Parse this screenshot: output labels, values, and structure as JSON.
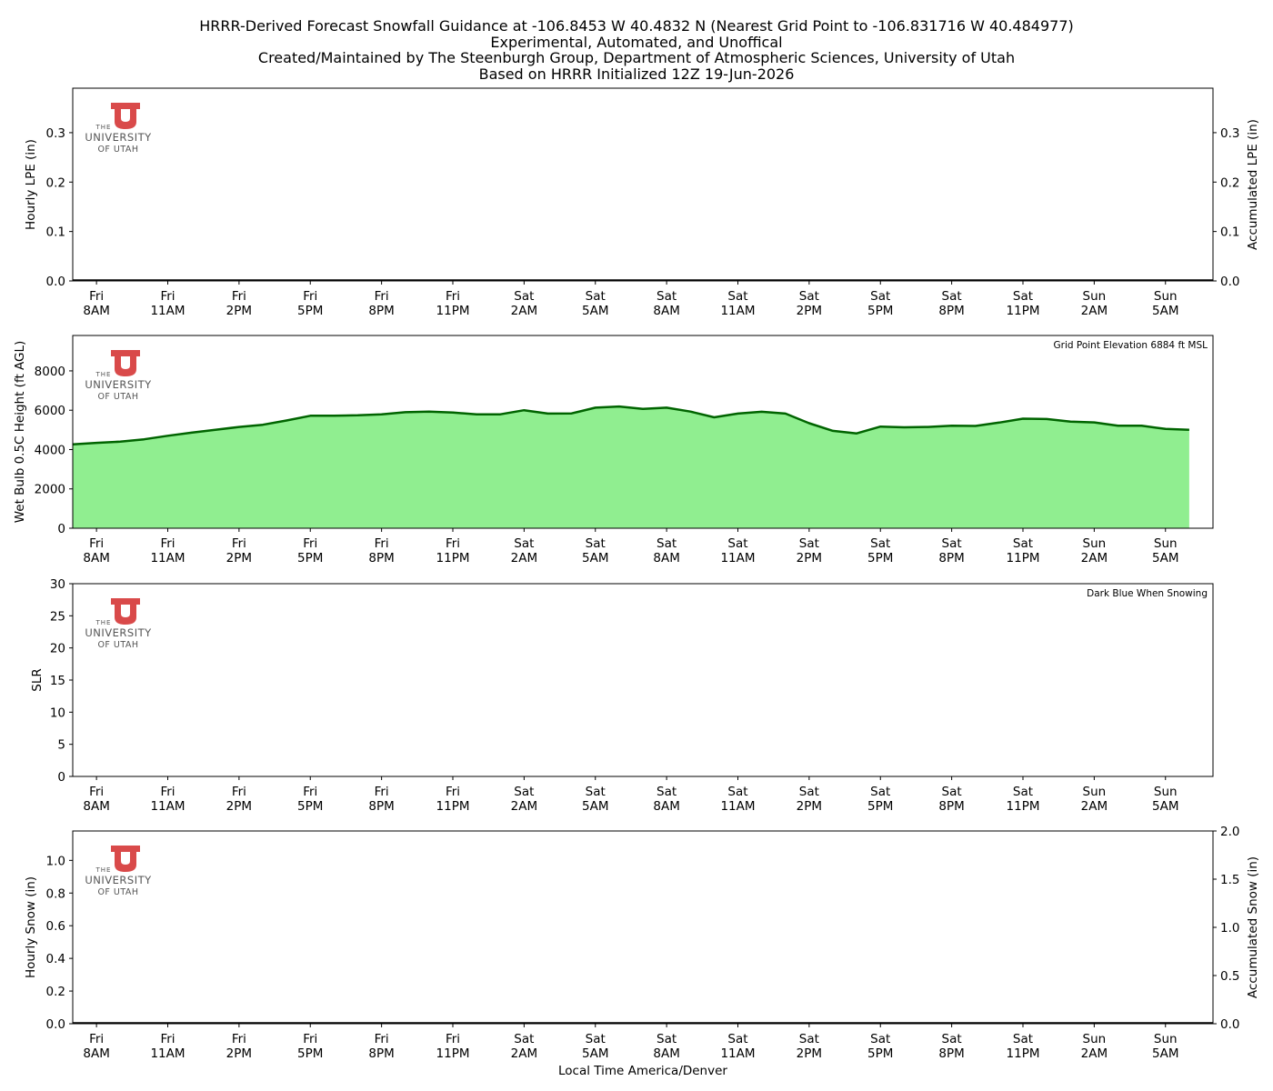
{
  "header": {
    "line1": "HRRR-Derived Forecast Snowfall Guidance at -106.8453 W 40.4832 N (Nearest Grid Point to -106.831716 W 40.484977)",
    "line2": "Experimental, Automated, and Unoffical",
    "line3": "Created/Maintained by The Steenburgh Group, Department of Atmospheric Sciences, University of Utah",
    "line4": "Based on HRRR Initialized 12Z 19-Jun-2026"
  },
  "logo": {
    "line1": "THE",
    "line2": "UNIVERSITY",
    "line3": "OF UTAH",
    "color": "#d94a4a"
  },
  "time_axis": {
    "xlabel": "Local Time America/Denver",
    "ticks": [
      [
        "Fri",
        "8AM"
      ],
      [
        "Fri",
        "11AM"
      ],
      [
        "Fri",
        "2PM"
      ],
      [
        "Fri",
        "5PM"
      ],
      [
        "Fri",
        "8PM"
      ],
      [
        "Fri",
        "11PM"
      ],
      [
        "Sat",
        "2AM"
      ],
      [
        "Sat",
        "5AM"
      ],
      [
        "Sat",
        "8AM"
      ],
      [
        "Sat",
        "11AM"
      ],
      [
        "Sat",
        "2PM"
      ],
      [
        "Sat",
        "5PM"
      ],
      [
        "Sat",
        "8PM"
      ],
      [
        "Sat",
        "11PM"
      ],
      [
        "Sun",
        "2AM"
      ],
      [
        "Sun",
        "5AM"
      ]
    ],
    "tick_hours": [
      1,
      4,
      7,
      10,
      13,
      16,
      19,
      22,
      25,
      28,
      31,
      34,
      37,
      40,
      43,
      46
    ],
    "xlim": [
      0,
      48
    ]
  },
  "chart_data": [
    {
      "type": "bar",
      "panel": "lpe",
      "ylabel": "Hourly LPE (in)",
      "ylabel_right": "Accumulated LPE (in)",
      "ylim": [
        0,
        0.39
      ],
      "yticks": [
        "0.0",
        "0.1",
        "0.2",
        "0.3"
      ],
      "ytick_values": [
        0,
        0.1,
        0.2,
        0.3
      ],
      "yticks_right": [
        "0.0",
        "0.1",
        "0.2",
        "0.3"
      ],
      "ytick_right_values": [
        0,
        0.1,
        0.2,
        0.3
      ],
      "values": [],
      "annotation": ""
    },
    {
      "type": "area",
      "panel": "wetbulb",
      "ylabel": "Wet Bulb 0.5C Height (ft AGL)",
      "ylim": [
        0,
        9800
      ],
      "yticks": [
        "0",
        "2000",
        "4000",
        "6000",
        "8000"
      ],
      "ytick_values": [
        0,
        2000,
        4000,
        6000,
        8000
      ],
      "annotation": "Grid Point Elevation 6884 ft MSL",
      "fill_color": "#90ee90",
      "line_color": "#006400",
      "x": [
        0,
        1,
        2,
        3,
        4,
        5,
        6,
        7,
        8,
        9,
        10,
        11,
        12,
        13,
        14,
        15,
        16,
        17,
        18,
        19,
        20,
        21,
        22,
        23,
        24,
        25,
        26,
        27,
        28,
        29,
        30,
        31,
        32,
        33,
        34,
        35,
        36,
        37,
        38,
        39,
        40,
        41,
        42,
        43,
        44,
        45,
        46,
        47
      ],
      "values": [
        4260,
        4340,
        4400,
        4520,
        4700,
        4860,
        5000,
        5150,
        5260,
        5480,
        5720,
        5720,
        5740,
        5790,
        5900,
        5930,
        5880,
        5790,
        5790,
        6000,
        5830,
        5840,
        6130,
        6190,
        6070,
        6130,
        5930,
        5640,
        5830,
        5920,
        5830,
        5340,
        4950,
        4820,
        5170,
        5130,
        5150,
        5210,
        5200,
        5370,
        5570,
        5550,
        5420,
        5380,
        5210,
        5210,
        5050,
        5000
      ]
    },
    {
      "type": "bar",
      "panel": "slr",
      "ylabel": "SLR",
      "ylim": [
        0,
        30
      ],
      "yticks": [
        "0",
        "5",
        "10",
        "15",
        "20",
        "25",
        "30"
      ],
      "ytick_values": [
        0,
        5,
        10,
        15,
        20,
        25,
        30
      ],
      "values": [],
      "annotation": "Dark Blue When Snowing"
    },
    {
      "type": "bar",
      "panel": "snow",
      "ylabel": "Hourly Snow (in)",
      "ylabel_right": "Accumulated Snow (in)",
      "ylim": [
        0,
        1.18
      ],
      "yticks": [
        "0.0",
        "0.2",
        "0.4",
        "0.6",
        "0.8",
        "1.0"
      ],
      "ytick_values": [
        0,
        0.2,
        0.4,
        0.6,
        0.8,
        1.0
      ],
      "yticks_right": [
        "0.0",
        "0.5",
        "1.0",
        "1.5",
        "2.0"
      ],
      "ytick_right_values": [
        0,
        0.5,
        1.0,
        1.5,
        2.0
      ],
      "ylim_right": [
        0,
        2.0
      ],
      "values": [],
      "annotation": ""
    }
  ]
}
